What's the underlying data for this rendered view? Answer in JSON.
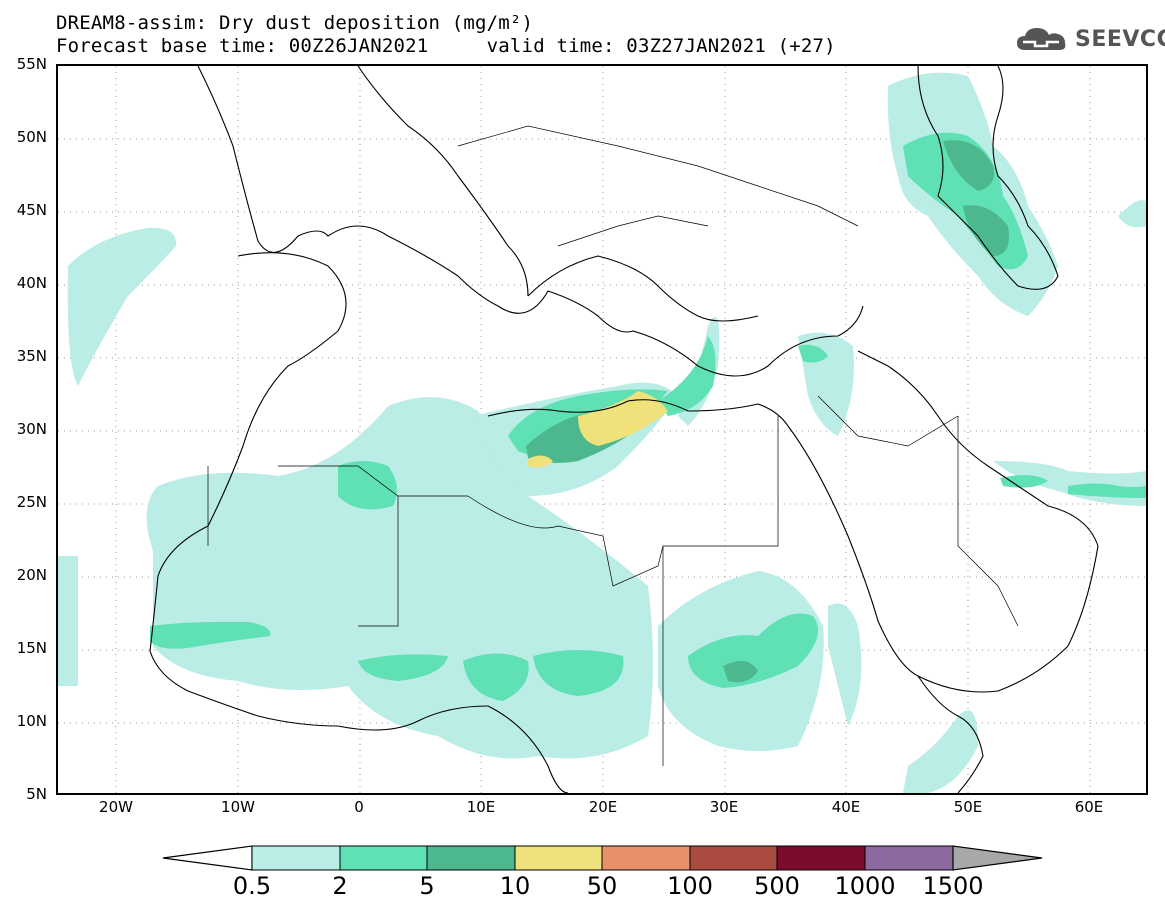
{
  "header": {
    "title_line1": "DREAM8-assim: Dry dust deposition (mg/m²)",
    "title_line2": "Forecast base time: 00Z26JAN2021     valid time: 03Z27JAN2021 (+27)"
  },
  "logo": {
    "text": "SEEVCCC",
    "icon": "cloud-logo-icon"
  },
  "map": {
    "lat_labels": [
      "55N",
      "50N",
      "45N",
      "40N",
      "35N",
      "30N",
      "25N",
      "20N",
      "15N",
      "10N",
      "5N"
    ],
    "lon_labels": [
      "20W",
      "10W",
      "0",
      "10E",
      "20E",
      "30E",
      "40E",
      "50E",
      "60E"
    ],
    "colors": {
      "c0_5": "#b9ede5",
      "c2": "#5fe0b5",
      "c5": "#4db88e",
      "c10": "#f0e27a",
      "coast": "#000000",
      "grid": "#9a9a9a"
    }
  },
  "colorbar": {
    "labels": [
      "0.5",
      "2",
      "5",
      "10",
      "50",
      "100",
      "500",
      "1000",
      "1500"
    ],
    "colors": [
      "#b9ede5",
      "#5fe0b5",
      "#4db88e",
      "#f0e27a",
      "#e8906a",
      "#a94b3e",
      "#7c0b2e",
      "#8c6aa0"
    ],
    "under_color": "#ffffff",
    "over_color": "#a8a8a8"
  }
}
